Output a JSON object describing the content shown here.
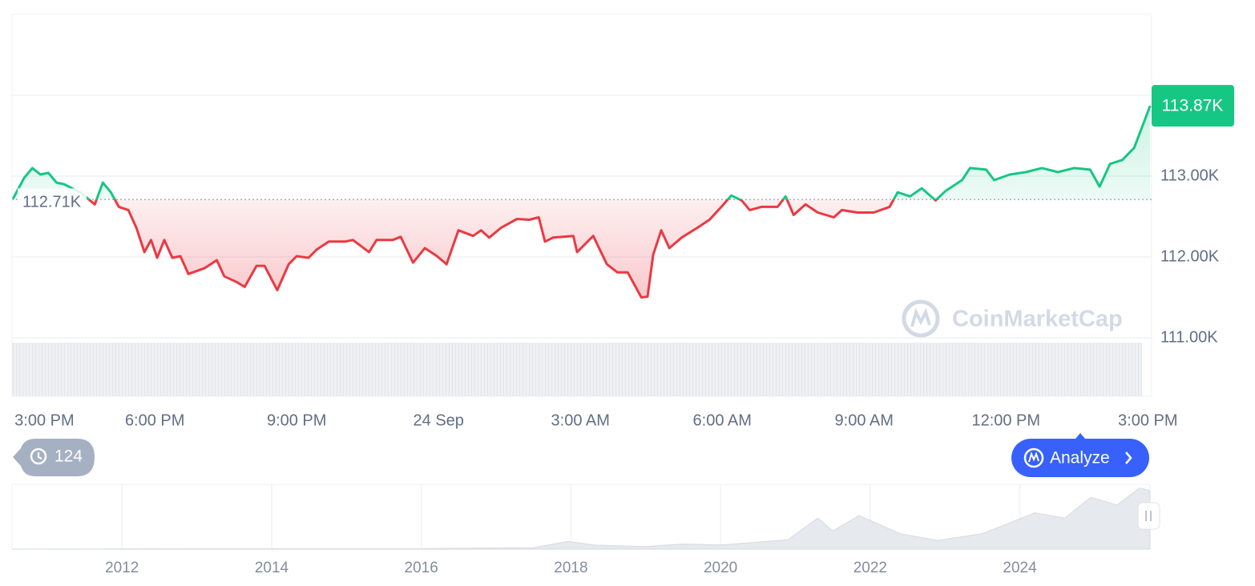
{
  "chart_data": [
    {
      "type": "line",
      "x": [
        0,
        0.24,
        0.41,
        0.58,
        0.75,
        0.92,
        1.08,
        1.42,
        1.73,
        1.9,
        2.07,
        2.24,
        2.44,
        2.61,
        2.78,
        2.92,
        3.05,
        3.2,
        3.37,
        3.54,
        3.71,
        4.05,
        4.31,
        4.47,
        4.73,
        4.9,
        5.15,
        5.32,
        5.59,
        5.83,
        6.0,
        6.25,
        6.42,
        6.68,
        7.02,
        7.19,
        7.53,
        7.69,
        8.03,
        8.2,
        8.46,
        8.71,
        8.97,
        9.17,
        9.42,
        9.73,
        9.9,
        10.07,
        10.32,
        10.66,
        10.92,
        11.12,
        11.25,
        11.42,
        11.85,
        11.93,
        12.27,
        12.56,
        12.78,
        13.0,
        13.29,
        13.42,
        13.54,
        13.71,
        13.88,
        14.14,
        14.47,
        14.73,
        14.98,
        15.19,
        15.41,
        15.58,
        15.83,
        16.17,
        16.34,
        16.51,
        16.76,
        17.02,
        17.36,
        17.53,
        17.86,
        18.2,
        18.54,
        18.71,
        18.97,
        19.22,
        19.51,
        19.73,
        20.07,
        20.24,
        20.58,
        20.75,
        21.08,
        21.42,
        21.76,
        22.1,
        22.44,
        22.78,
        22.98,
        23.2,
        23.46,
        23.71,
        24.05
      ],
      "values": [
        112.72,
        112.98,
        113.1,
        113.02,
        113.04,
        112.92,
        112.9,
        112.8,
        112.65,
        112.92,
        112.8,
        112.62,
        112.58,
        112.36,
        112.06,
        112.21,
        111.99,
        112.21,
        111.99,
        112.01,
        111.79,
        111.86,
        111.96,
        111.76,
        111.69,
        111.63,
        111.89,
        111.89,
        111.59,
        111.91,
        112.01,
        111.99,
        112.09,
        112.19,
        112.19,
        112.21,
        112.06,
        112.21,
        112.21,
        112.25,
        111.93,
        112.11,
        112.01,
        111.91,
        112.33,
        112.26,
        112.33,
        112.24,
        112.36,
        112.47,
        112.46,
        112.49,
        112.19,
        112.24,
        112.26,
        112.06,
        112.26,
        111.91,
        111.81,
        111.81,
        111.5,
        111.51,
        112.03,
        112.33,
        112.11,
        112.24,
        112.36,
        112.46,
        112.62,
        112.76,
        112.7,
        112.58,
        112.62,
        112.62,
        112.75,
        112.52,
        112.65,
        112.55,
        112.49,
        112.58,
        112.55,
        112.55,
        112.62,
        112.8,
        112.75,
        112.85,
        112.7,
        112.82,
        112.95,
        113.1,
        113.08,
        112.95,
        113.02,
        113.05,
        113.1,
        113.05,
        113.1,
        113.08,
        112.87,
        113.15,
        113.2,
        113.35,
        113.87
      ],
      "colors": {
        "up": "#16c784",
        "down": "#ea3943"
      },
      "baseline": {
        "value": 112.71,
        "label": "112.71K"
      },
      "current": {
        "value": 113.87,
        "label": "113.87K"
      },
      "xlim": [
        -0.02,
        24.08
      ],
      "xticks": [
        {
          "value": 0,
          "label": "3:00 PM"
        },
        {
          "value": 3,
          "label": "6:00 PM"
        },
        {
          "value": 6,
          "label": "9:00 PM"
        },
        {
          "value": 9,
          "label": "24 Sep"
        },
        {
          "value": 12,
          "label": "3:00 AM"
        },
        {
          "value": 15,
          "label": "6:00 AM"
        },
        {
          "value": 18,
          "label": "9:00 AM"
        },
        {
          "value": 21,
          "label": "12:00 PM"
        },
        {
          "value": 24,
          "label": "3:00 PM"
        }
      ],
      "ylim": [
        111,
        115
      ],
      "yticks": [
        {
          "value": 111,
          "label": "111.00K"
        },
        {
          "value": 112,
          "label": "112.00K"
        },
        {
          "value": 113,
          "label": "113.00K"
        },
        {
          "value": 114,
          "label": null
        }
      ],
      "grid": true
    },
    {
      "type": "area",
      "x": [
        2010.53,
        2013.0,
        2016.0,
        2017.5,
        2017.96,
        2018.3,
        2019.0,
        2019.5,
        2020.0,
        2020.9,
        2021.3,
        2021.5,
        2021.85,
        2022.4,
        2022.9,
        2023.5,
        2024.2,
        2024.6,
        2024.95,
        2025.3,
        2025.6,
        2025.74
      ],
      "values": [
        0,
        1,
        1,
        3,
        15,
        8,
        5,
        10,
        8,
        18,
        60,
        35,
        65,
        30,
        17,
        30,
        70,
        60,
        100,
        85,
        118,
        113
      ],
      "color": "#e6e9ee",
      "xlim": [
        2010.53,
        2025.74
      ],
      "ylim": [
        0,
        125
      ],
      "xticks": [
        2012,
        2014,
        2016,
        2018,
        2020,
        2022,
        2024
      ]
    }
  ],
  "history_count": 124,
  "analyze_button": "Analyze",
  "watermark": "CoinMarketCap"
}
